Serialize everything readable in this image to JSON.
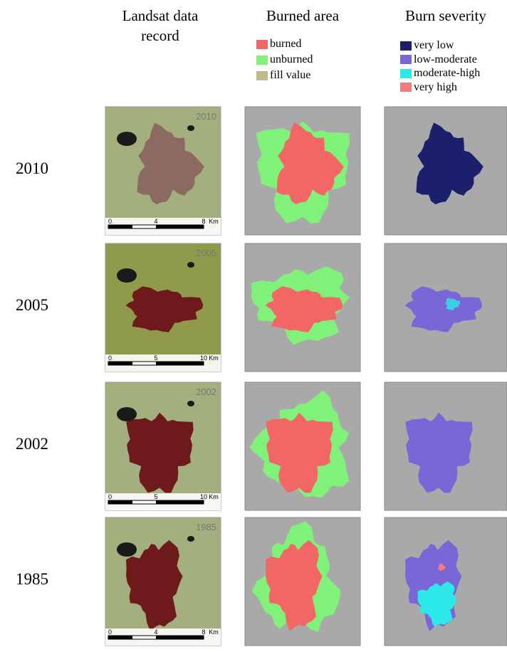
{
  "columns": [
    {
      "title": "Landsat data record"
    },
    {
      "title": "Burned area",
      "legend": [
        {
          "label": "burned",
          "color": "#f26666"
        },
        {
          "label": "unburned",
          "color": "#80f27a"
        },
        {
          "label": "fill value",
          "color": "#c2b98a"
        }
      ]
    },
    {
      "title": "Burn severity",
      "legend": [
        {
          "label": "very low",
          "color": "#1c1f6b"
        },
        {
          "label": "low-moderate",
          "color": "#7a66d6"
        },
        {
          "label": "moderate-high",
          "color": "#2de8e8"
        },
        {
          "label": "very high",
          "color": "#f07c7c"
        }
      ]
    }
  ],
  "rows": [
    {
      "year": "2010",
      "stamp": "2010",
      "scale": [
        "0",
        "4",
        "8",
        "Km"
      ]
    },
    {
      "year": "2005",
      "stamp": "2005",
      "scale": [
        "0",
        "5",
        "10",
        "Km"
      ]
    },
    {
      "year": "2002",
      "stamp": "2002",
      "scale": [
        "0",
        "5",
        "10",
        "Km"
      ]
    },
    {
      "year": "1985",
      "stamp": "1985",
      "scale": [
        "0",
        "4",
        "8",
        "Km"
      ]
    }
  ]
}
